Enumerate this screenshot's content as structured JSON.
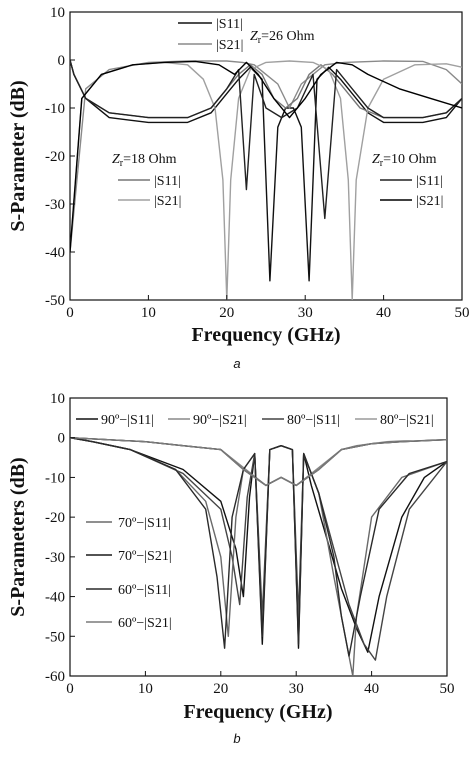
{
  "chart_data": [
    {
      "panel": "a",
      "type": "line",
      "xlabel": "Frequency (GHz)",
      "ylabel": "S-Parameter (dB)",
      "xlim": [
        0,
        50
      ],
      "ylim": [
        -50,
        10
      ],
      "xticks": [
        0,
        10,
        20,
        30,
        40,
        50
      ],
      "yticks": [
        10,
        0,
        -10,
        -20,
        -30,
        -40,
        -50
      ],
      "grid": false,
      "legend_groups": [
        {
          "title": "Zr=26 Ohm",
          "entries": [
            "|S11|",
            "|S21|"
          ],
          "position": "top-center"
        },
        {
          "title": "Zr=18 Ohm",
          "entries": [
            "|S11|",
            "|S21|"
          ],
          "position": "left"
        },
        {
          "title": "Zr=10 Ohm",
          "entries": [
            "|S11|",
            "|S21|"
          ],
          "position": "right"
        }
      ],
      "series": [
        {
          "name": "Zr=26 Ohm |S11|",
          "color": "#111111",
          "x": [
            0,
            0.5,
            2,
            5,
            10,
            15,
            18,
            20,
            21.5,
            23,
            24.5,
            25.5,
            26.5,
            27.5,
            28.5,
            29.5,
            30.5,
            31.5,
            33,
            34.5,
            36,
            38,
            40,
            45,
            48,
            50
          ],
          "y": [
            0,
            -3,
            -8,
            -12,
            -13,
            -13,
            -11,
            -7,
            -4,
            -1.5,
            -4,
            -46,
            -14,
            -10,
            -10,
            -14,
            -46,
            -4,
            -1.5,
            -4,
            -7,
            -11,
            -13,
            -13,
            -12,
            -8
          ]
        },
        {
          "name": "Zr=26 Ohm |S21|",
          "color": "#8a8a8a",
          "x": [
            0,
            2,
            5,
            10,
            15,
            20,
            22,
            23.5,
            25,
            26.5,
            28,
            29.5,
            31,
            32.5,
            35,
            40,
            45,
            48,
            50
          ],
          "y": [
            -40,
            -6,
            -2,
            -0.5,
            -0.2,
            -0.2,
            -0.5,
            -1,
            -3,
            -5,
            -10,
            -5,
            -3,
            -1,
            -0.5,
            -0.2,
            -0.3,
            -2,
            -5
          ]
        },
        {
          "name": "Zr=18 Ohm |S11|",
          "color": "#777777",
          "x": [
            0,
            0.5,
            2,
            5,
            10,
            15,
            18,
            20,
            21.5,
            23,
            24.5,
            26,
            27.5,
            29,
            30.5,
            32,
            33.5,
            35,
            37,
            40,
            45,
            48,
            50
          ],
          "y": [
            0,
            -3,
            -8,
            -11,
            -12,
            -12,
            -10,
            -6,
            -3,
            -1,
            -3,
            -8,
            -10,
            -8,
            -3,
            -1,
            -3,
            -6,
            -10,
            -12,
            -12,
            -11,
            -8
          ]
        },
        {
          "name": "Zr=18 Ohm |S21|",
          "color": "#a0a0a0",
          "x": [
            0,
            1.5,
            4,
            8,
            12,
            15,
            17,
            18.5,
            19.5,
            20,
            20.5,
            21.5,
            23,
            25,
            28,
            31,
            33,
            34.5,
            35.5,
            36,
            36.5,
            38,
            40,
            44,
            48,
            50
          ],
          "y": [
            -40,
            -8,
            -3,
            -1,
            -0.5,
            -1,
            -4,
            -10,
            -25,
            -50,
            -25,
            -8,
            -2,
            -0.5,
            -0.2,
            -0.5,
            -2,
            -8,
            -25,
            -50,
            -25,
            -10,
            -4,
            -1,
            -0.8,
            -1.5
          ]
        },
        {
          "name": "Zr=10 Ohm |S11|",
          "color": "#222222",
          "x": [
            0,
            0.5,
            2,
            5,
            10,
            15,
            18,
            20,
            21.5,
            22.5,
            23.5,
            25,
            27,
            29,
            31,
            32.5,
            34,
            36,
            38,
            40,
            45,
            48,
            50
          ],
          "y": [
            0,
            -3,
            -8,
            -11,
            -12,
            -12,
            -10,
            -6,
            -2,
            -27,
            -3,
            -10,
            -12,
            -10,
            -3,
            -33,
            -2,
            -6,
            -10,
            -12,
            -12,
            -11,
            -8
          ]
        },
        {
          "name": "Zr=10 Ohm |S21|",
          "color": "#000000",
          "x": [
            0,
            1.5,
            4,
            8,
            12,
            16,
            19,
            21,
            22.5,
            24,
            26,
            28,
            30,
            32,
            34,
            36,
            38,
            42,
            46,
            50
          ],
          "y": [
            -40,
            -8,
            -3,
            -1,
            -0.5,
            -0.3,
            -1,
            -3,
            -0.5,
            -3,
            -8,
            -12,
            -8,
            -3,
            -0.5,
            -1,
            -3,
            -6,
            -8,
            -10
          ]
        }
      ],
      "annotations": {
        "z26": {
          "var": "Z",
          "sub": "r",
          "text": "=26 Ohm"
        },
        "z18": {
          "var": "Z",
          "sub": "r",
          "text": "=18 Ohm"
        },
        "z10": {
          "var": "Z",
          "sub": "r",
          "text": "=10 Ohm"
        }
      },
      "caption": "a"
    },
    {
      "panel": "b",
      "type": "line",
      "xlabel": "Frequency (GHz)",
      "ylabel": "S-Parameters (dB)",
      "xlim": [
        0,
        50
      ],
      "ylim": [
        -60,
        10
      ],
      "xticks": [
        0,
        10,
        20,
        30,
        40,
        50
      ],
      "yticks": [
        10,
        0,
        -10,
        -20,
        -30,
        -40,
        -50,
        -60
      ],
      "grid": false,
      "legend_top": [
        "90º−|S11|",
        "90º−|S21|",
        "80º−|S11|",
        "80º−|S21|"
      ],
      "legend_left": [
        "70º−|S11|",
        "70º−|S21|",
        "60º−|S11|",
        "60º−|S21|"
      ],
      "series": [
        {
          "name": "90º−|S11|",
          "color": "#111111",
          "x": [
            0,
            3,
            8,
            15,
            20,
            22,
            23,
            23.8,
            24.5,
            25.5,
            26.5,
            28,
            29.5,
            30.3,
            31,
            32,
            34,
            36,
            38,
            39.5,
            41,
            44,
            47,
            50
          ],
          "y": [
            0,
            -1,
            -3,
            -8,
            -16,
            -28,
            -40,
            -15,
            -4,
            -52,
            -3,
            -2,
            -3,
            -53,
            -4,
            -12,
            -25,
            -38,
            -48,
            -54,
            -40,
            -20,
            -10,
            -6
          ]
        },
        {
          "name": "90º−|S21|",
          "color": "#888888",
          "x": [
            0,
            5,
            10,
            15,
            20,
            22,
            24,
            26,
            28,
            30,
            32,
            34,
            36,
            38,
            40,
            42,
            44,
            46,
            48,
            50
          ],
          "y": [
            0,
            -0.5,
            -1,
            -2,
            -3,
            -6,
            -9,
            -12,
            -10,
            -12,
            -9,
            -6,
            -3,
            -2,
            -1.5,
            -1,
            -0.8,
            -0.8,
            -0.6,
            -0.5
          ]
        },
        {
          "name": "80º−|S11|",
          "color": "#444444",
          "x": [
            0,
            3,
            8,
            15,
            20,
            21.5,
            22.5,
            23.5,
            24.5,
            25.5,
            26.5,
            28,
            29.5,
            30.3,
            31,
            33,
            35,
            37,
            39,
            40.5,
            42,
            45,
            50
          ],
          "y": [
            0,
            -1,
            -3,
            -9,
            -18,
            -30,
            -42,
            -15,
            -4,
            -45,
            -3,
            -2,
            -3,
            -45,
            -4,
            -14,
            -28,
            -42,
            -52,
            -56,
            -40,
            -18,
            -6
          ]
        },
        {
          "name": "80º−|S21|",
          "color": "#9a9a9a",
          "x": [
            0,
            5,
            10,
            15,
            20,
            23,
            26,
            28,
            30,
            33,
            36,
            40,
            44,
            50
          ],
          "y": [
            0,
            -0.5,
            -1,
            -2,
            -3,
            -8,
            -12,
            -10,
            -12,
            -8,
            -3,
            -1.5,
            -1,
            -0.5
          ]
        },
        {
          "name": "70º−|S11|",
          "color": "#6a6a6a",
          "x": [
            0,
            3,
            8,
            14,
            18,
            20,
            21,
            22,
            23,
            24.5,
            25.5,
            26.5,
            28,
            29.5,
            30.3,
            31,
            33,
            35,
            37,
            37.5,
            38,
            40,
            44,
            50
          ],
          "y": [
            0,
            -1,
            -3,
            -8,
            -16,
            -30,
            -50,
            -20,
            -8,
            -4,
            -48,
            -3,
            -2,
            -3,
            -50,
            -4,
            -14,
            -35,
            -55,
            -60,
            -45,
            -20,
            -10,
            -6
          ]
        },
        {
          "name": "70º−|S21|",
          "color": "#1a1a1a",
          "x": [
            0,
            5,
            10,
            15,
            20,
            23,
            26,
            28,
            30,
            33,
            36,
            40,
            44,
            50
          ],
          "y": [
            0,
            -0.5,
            -1,
            -2,
            -3,
            -8,
            -12,
            -10,
            -12,
            -8,
            -3,
            -1.5,
            -1,
            -0.5
          ]
        },
        {
          "name": "60º−|S11|",
          "color": "#2a2a2a",
          "x": [
            0,
            3,
            8,
            14,
            18,
            19.5,
            20.5,
            21.5,
            23,
            24.5,
            25.5,
            26.5,
            28,
            29.5,
            30.3,
            31,
            33,
            35,
            36,
            37,
            38.5,
            41,
            45,
            50
          ],
          "y": [
            0,
            -1,
            -3,
            -8,
            -18,
            -35,
            -53,
            -20,
            -8,
            -4,
            -50,
            -3,
            -2,
            -3,
            -52,
            -4,
            -14,
            -30,
            -45,
            -55,
            -40,
            -18,
            -9,
            -6
          ]
        },
        {
          "name": "60º−|S21|",
          "color": "#7a7a7a",
          "x": [
            0,
            5,
            10,
            15,
            20,
            23,
            26,
            28,
            30,
            33,
            36,
            40,
            44,
            50
          ],
          "y": [
            0,
            -0.5,
            -1,
            -2,
            -3,
            -8,
            -12,
            -10,
            -12,
            -8,
            -3,
            -1.5,
            -1,
            -0.5
          ]
        }
      ],
      "caption": "b"
    }
  ]
}
